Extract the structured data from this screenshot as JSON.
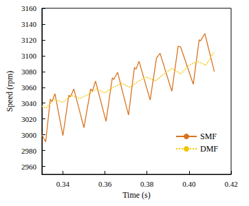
{
  "chart_data": {
    "type": "line",
    "x_label": "Time (s)",
    "y_label": "Speed (rpm)",
    "xlim": [
      0.33,
      0.42
    ],
    "xticks": [
      0.34,
      0.36,
      0.38,
      0.4,
      0.42
    ],
    "ylim": [
      2950,
      3160
    ],
    "yticks": [
      2960,
      2980,
      3000,
      3020,
      3040,
      3060,
      3080,
      3100,
      3120,
      3140,
      3160
    ],
    "grid": false,
    "legend": "lower right",
    "series": [
      {
        "name": "SMF",
        "color": "#d9731f",
        "line_style": "solid",
        "x": [
          0.33,
          0.3318,
          0.334,
          0.3348,
          0.3362,
          0.34,
          0.3428,
          0.3436,
          0.3452,
          0.35,
          0.3532,
          0.354,
          0.3555,
          0.3605,
          0.3635,
          0.3642,
          0.366,
          0.3712,
          0.374,
          0.3748,
          0.3762,
          0.3815,
          0.3845,
          0.3862,
          0.3918,
          0.3948,
          0.396,
          0.402,
          0.4048,
          0.4055,
          0.4075,
          0.412
        ],
        "values": [
          3000,
          2991,
          3045,
          3042,
          3052,
          2999,
          3050,
          3048,
          3058,
          3009,
          3058,
          3055,
          3068,
          3017,
          3072,
          3070,
          3079,
          3025,
          3085,
          3083,
          3093,
          3044,
          3097,
          3103,
          3055,
          3112,
          3111,
          3064,
          3120,
          3119,
          3128,
          3080
        ]
      },
      {
        "name": "DMF",
        "color": "#f2c500",
        "line_style": "dotted",
        "x": [
          0.33,
          0.332,
          0.336,
          0.34,
          0.344,
          0.348,
          0.352,
          0.356,
          0.36,
          0.364,
          0.368,
          0.372,
          0.376,
          0.38,
          0.384,
          0.388,
          0.392,
          0.396,
          0.4,
          0.404,
          0.408,
          0.412
        ],
        "values": [
          3036,
          3034,
          3045,
          3041,
          3050,
          3046,
          3051,
          3058,
          3053,
          3060,
          3065,
          3060,
          3068,
          3073,
          3068,
          3077,
          3084,
          3077,
          3088,
          3093,
          3088,
          3105
        ]
      }
    ]
  }
}
